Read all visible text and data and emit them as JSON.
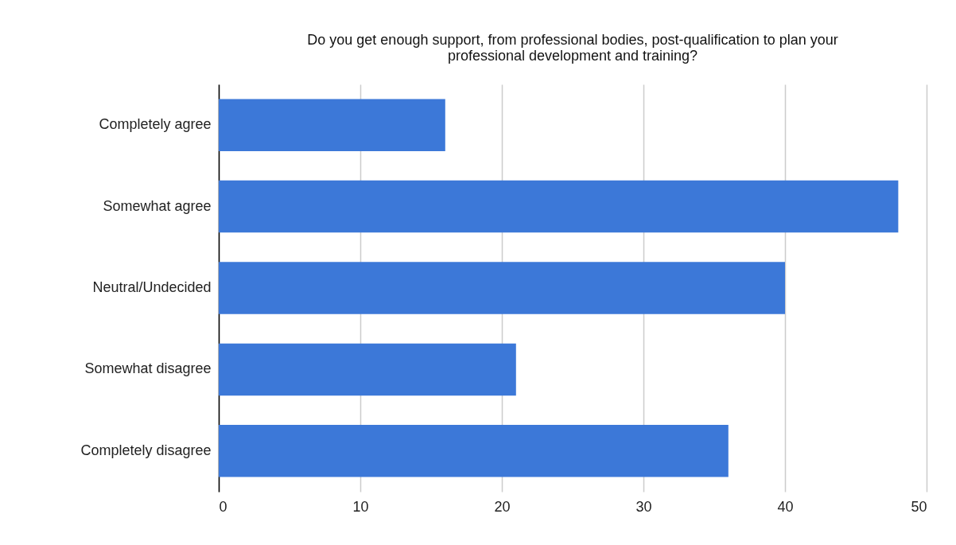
{
  "chart_data": {
    "type": "bar",
    "orientation": "horizontal",
    "title": "Do you get enough support, from professional bodies, post-qualification to plan your professional development and training?",
    "categories": [
      "Completely agree",
      "Somewhat agree",
      "Neutral/Undecided",
      "Somewhat disagree",
      "Completely disagree"
    ],
    "values": [
      16,
      48,
      40,
      21,
      36
    ],
    "color": "#3c78d8",
    "xlim": [
      0,
      50
    ],
    "xticks": [
      0,
      10,
      20,
      30,
      40,
      50
    ],
    "grid": "x"
  }
}
